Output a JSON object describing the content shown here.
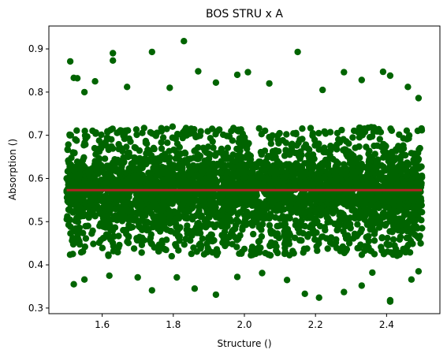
{
  "chart_data": {
    "type": "scatter",
    "title": "BOS STRU x A",
    "xlabel": "Structure ()",
    "ylabel": "Absorption ()",
    "xlim": [
      1.45,
      2.55
    ],
    "ylim": [
      0.287,
      0.953
    ],
    "xticks": [
      "1.6",
      "1.8",
      "2.0",
      "2.2",
      "2.4"
    ],
    "yticks": [
      "0.3",
      "0.4",
      "0.5",
      "0.6",
      "0.7",
      "0.8",
      "0.9"
    ],
    "grid": false,
    "colors": {
      "points": "#006400",
      "trend": "#b22222"
    },
    "series": [
      {
        "type": "scatter",
        "x_range": [
          1.5,
          2.5
        ],
        "dense_band": [
          0.42,
          0.72
        ],
        "points": [
          [
            1.51,
            0.871
          ],
          [
            1.52,
            0.833
          ],
          [
            1.53,
            0.832
          ],
          [
            1.58,
            0.825
          ],
          [
            1.63,
            0.89
          ],
          [
            1.63,
            0.873
          ],
          [
            1.74,
            0.893
          ],
          [
            1.83,
            0.918
          ],
          [
            1.87,
            0.848
          ],
          [
            2.15,
            0.893
          ],
          [
            2.28,
            0.846
          ],
          [
            2.41,
            0.838
          ],
          [
            2.22,
            0.805
          ],
          [
            1.98,
            0.84
          ],
          [
            1.92,
            0.822
          ],
          [
            2.07,
            0.82
          ],
          [
            2.33,
            0.828
          ],
          [
            2.46,
            0.812
          ],
          [
            1.67,
            0.812
          ],
          [
            1.79,
            0.81
          ],
          [
            2.01,
            0.846
          ],
          [
            2.39,
            0.847
          ],
          [
            1.55,
            0.8
          ],
          [
            2.49,
            0.786
          ],
          [
            1.52,
            0.355
          ],
          [
            1.55,
            0.366
          ],
          [
            1.74,
            0.341
          ],
          [
            1.86,
            0.345
          ],
          [
            1.92,
            0.331
          ],
          [
            2.17,
            0.333
          ],
          [
            2.21,
            0.324
          ],
          [
            2.28,
            0.337
          ],
          [
            2.41,
            0.318
          ],
          [
            2.41,
            0.315
          ],
          [
            2.33,
            0.352
          ],
          [
            2.47,
            0.366
          ],
          [
            1.62,
            0.375
          ],
          [
            1.98,
            0.372
          ],
          [
            2.05,
            0.381
          ],
          [
            1.7,
            0.371
          ],
          [
            2.12,
            0.365
          ],
          [
            2.36,
            0.382
          ],
          [
            1.81,
            0.371
          ],
          [
            2.49,
            0.385
          ]
        ]
      },
      {
        "type": "line",
        "x": [
          1.5,
          2.5
        ],
        "y": [
          0.573,
          0.573
        ]
      }
    ]
  }
}
